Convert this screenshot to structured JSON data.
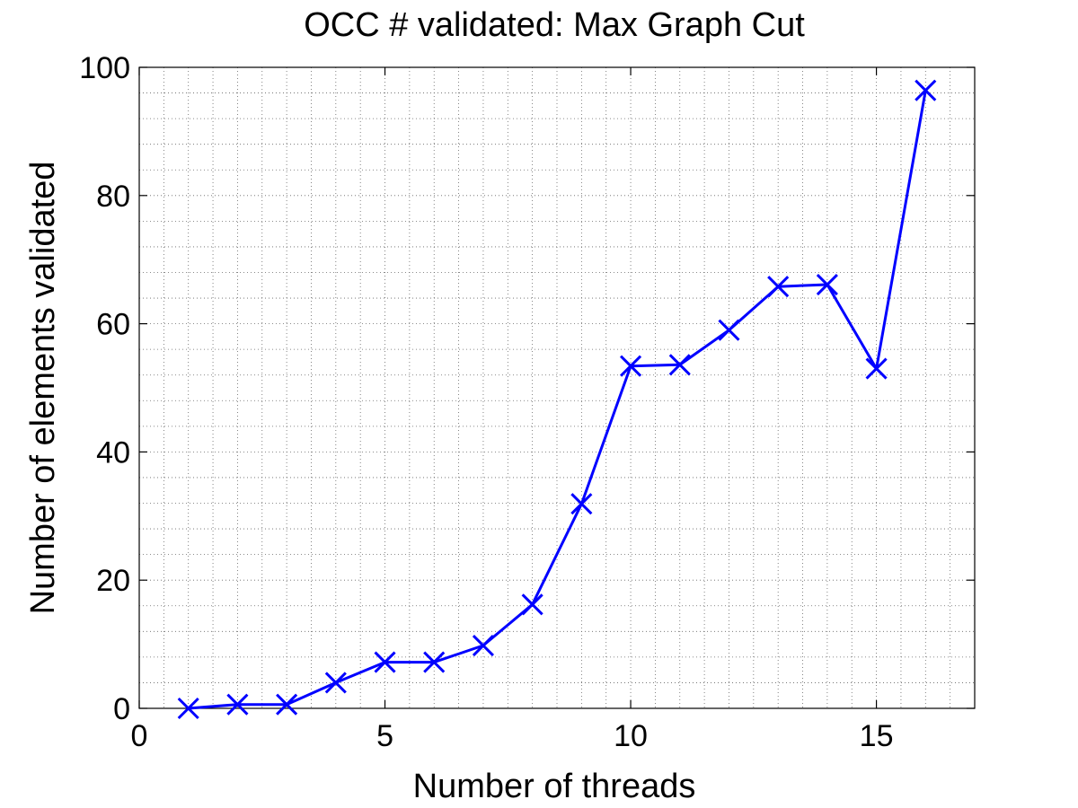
{
  "chart_data": {
    "type": "line",
    "title": "OCC # validated: Max Graph Cut",
    "xlabel": "Number of threads",
    "ylabel": "Number of elements validated",
    "xlim": [
      0,
      17
    ],
    "ylim": [
      0,
      100
    ],
    "xticks": [
      0,
      5,
      10,
      15
    ],
    "yticks": [
      0,
      20,
      40,
      60,
      80,
      100
    ],
    "grid": "on (major and minor, dotted)",
    "marker": "x",
    "series": [
      {
        "color": "#0000ff",
        "x": [
          1,
          2,
          3,
          4,
          5,
          6,
          7,
          8,
          9,
          10,
          11,
          12,
          13,
          14,
          15,
          16
        ],
        "values": [
          0,
          0.6,
          0.6,
          4,
          7.2,
          7.2,
          9.8,
          16.2,
          31.9,
          53.4,
          53.6,
          59,
          65.8,
          66.1,
          53,
          96.4
        ]
      }
    ]
  }
}
